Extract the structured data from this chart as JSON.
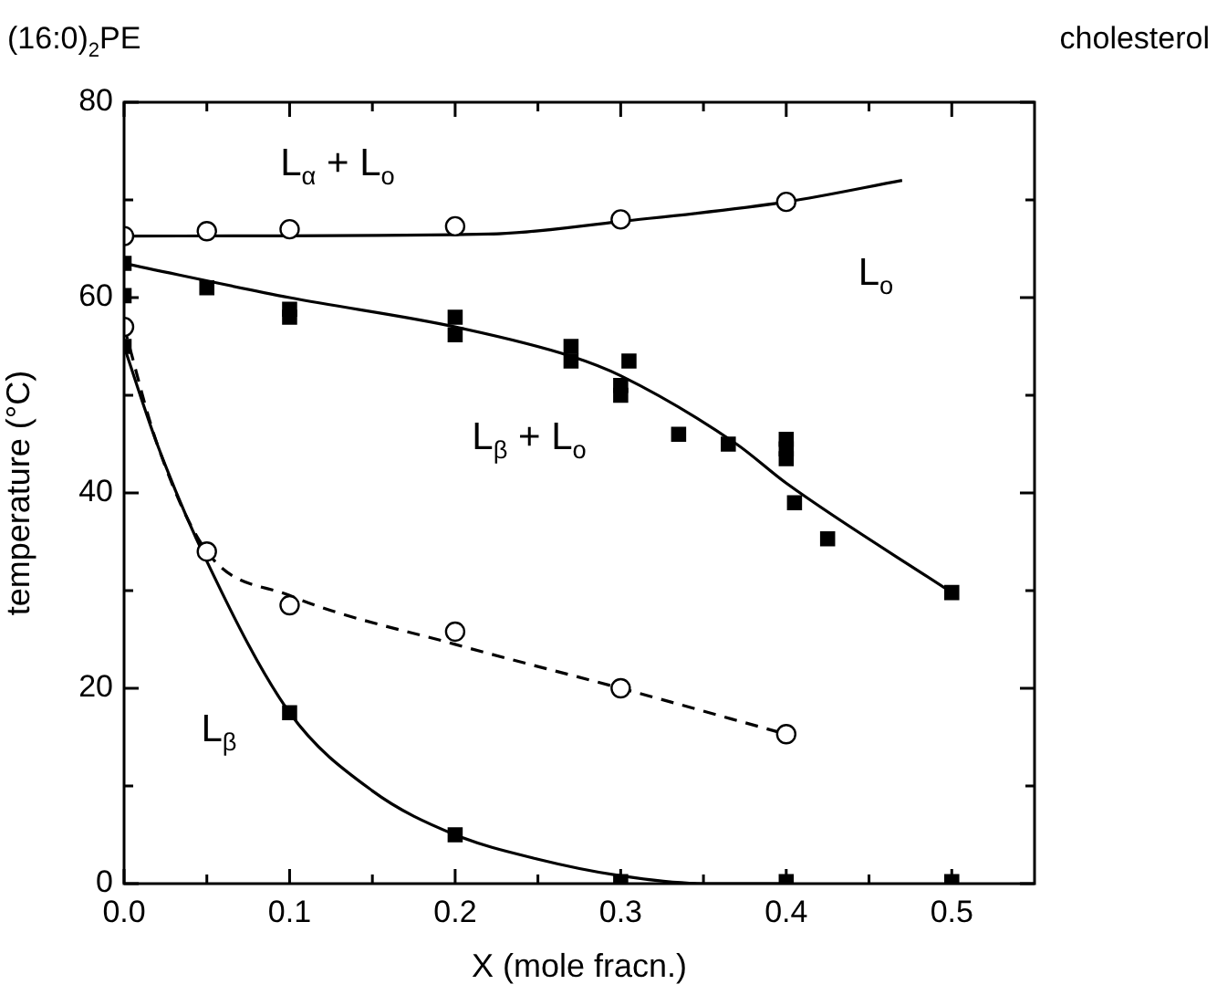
{
  "chart_data": {
    "type": "scatter",
    "xlabel": "X (mole fracn.)",
    "ylabel": "temperature (°C)",
    "xlim": [
      0,
      0.55
    ],
    "xticks": [
      {
        "value": 0,
        "label": "0.0"
      },
      {
        "value": 0.05,
        "label": null
      },
      {
        "value": 0.1,
        "label": "0.1"
      },
      {
        "value": 0.15,
        "label": null
      },
      {
        "value": 0.2,
        "label": "0.2"
      },
      {
        "value": 0.25,
        "label": null
      },
      {
        "value": 0.3,
        "label": "0.3"
      },
      {
        "value": 0.35,
        "label": null
      },
      {
        "value": 0.4,
        "label": "0.4"
      },
      {
        "value": 0.45,
        "label": null
      },
      {
        "value": 0.5,
        "label": "0.5"
      }
    ],
    "ylim": [
      0,
      80
    ],
    "yticks": [
      0,
      {
        "value": 10,
        "label": null
      },
      20,
      {
        "value": 30,
        "label": null
      },
      40,
      {
        "value": 50,
        "label": null
      },
      60,
      {
        "value": 70,
        "label": null
      },
      80
    ],
    "grid": false,
    "legend": false,
    "series": [
      {
        "marker": "circle",
        "color": "#000000",
        "x": [
          0,
          0.05,
          0.1,
          0.2,
          0.3,
          0.4
        ],
        "values": [
          66.3,
          66.8,
          67,
          67.3,
          68,
          69.8
        ]
      },
      {
        "type": "line",
        "marker": "none",
        "line_style": "solid",
        "color": "#000000",
        "x": [
          0,
          0.22,
          0.3,
          0.4,
          0.47
        ],
        "values": [
          66.3,
          66.5,
          67.8,
          69.8,
          72
        ]
      },
      {
        "marker": "square",
        "color": "#000000",
        "x": [
          0,
          0,
          0.05,
          0.1,
          0.1,
          0.2,
          0.2,
          0.27,
          0.27,
          0.305,
          0.3,
          0.3,
          0.335,
          0.365,
          0.4,
          0.4,
          0.4,
          0.405,
          0.425,
          0.5
        ],
        "values": [
          63.5,
          60.2,
          61,
          58.8,
          58,
          58,
          56.2,
          55,
          53.5,
          53.5,
          51,
          50,
          46,
          45,
          45.5,
          44.5,
          43.5,
          39,
          35.3,
          29.8
        ]
      },
      {
        "type": "line",
        "marker": "none",
        "line_style": "solid",
        "color": "#000000",
        "x": [
          0,
          0.1,
          0.2,
          0.27,
          0.3,
          0.37,
          0.4,
          0.5
        ],
        "values": [
          63.5,
          60,
          57,
          54,
          52,
          45,
          41,
          29.8
        ]
      },
      {
        "marker": "circle",
        "color": "#000000",
        "x": [
          0,
          0.05,
          0.1,
          0.2,
          0.3,
          0.4
        ],
        "values": [
          57,
          34,
          28.5,
          25.8,
          20,
          15.3
        ]
      },
      {
        "type": "line",
        "marker": "none",
        "line_style": "dashed",
        "color": "#000000",
        "x": [
          0,
          0.02,
          0.05,
          0.1,
          0.2,
          0.3,
          0.4
        ],
        "values": [
          57,
          45,
          34,
          29.5,
          24.5,
          20,
          15.3
        ]
      },
      {
        "marker": "square",
        "color": "#000000",
        "x": [
          0,
          0.1,
          0.2,
          0.3,
          0.4,
          0.5
        ],
        "values": [
          55,
          17.5,
          5,
          0.2,
          0.2,
          0.2
        ]
      },
      {
        "type": "line",
        "marker": "none",
        "line_style": "solid",
        "color": "#000000",
        "x": [
          0,
          0.02,
          0.05,
          0.1,
          0.15,
          0.2,
          0.25,
          0.3,
          0.35,
          0.4
        ],
        "values": [
          55,
          45,
          33,
          17.5,
          9.5,
          5,
          2.5,
          0.8,
          0,
          0
        ]
      }
    ],
    "annotations": [
      "(16:0)$_{2}$PE",
      "cholesterol",
      "L$_{α}$ + L$_{o}$",
      "L$_{o}$",
      "L$_{β}$ + L$_{o}$",
      "L$_{β}$"
    ]
  }
}
